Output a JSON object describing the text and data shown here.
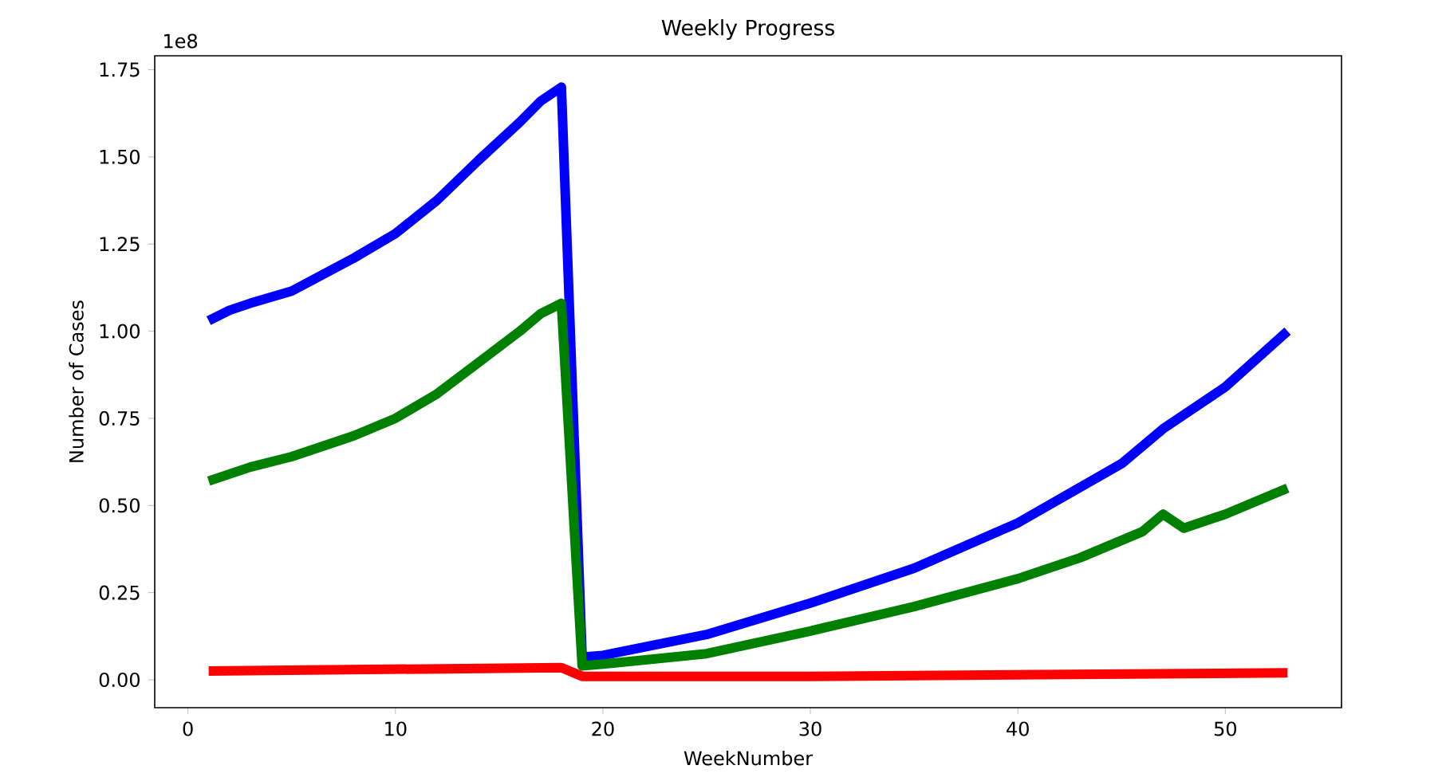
{
  "chart_data": {
    "type": "line",
    "title": "Weekly Progress",
    "xlabel": "WeekNumber",
    "ylabel": "Number of Cases",
    "annotations": [
      "1e8"
    ],
    "series": [
      {
        "color": "#0000ff",
        "x": [
          1,
          2,
          3,
          5,
          8,
          10,
          12,
          14,
          16,
          17,
          18,
          19,
          20,
          25,
          30,
          35,
          40,
          45,
          47,
          50,
          53
        ],
        "values": [
          1.03,
          1.06,
          1.08,
          1.115,
          1.21,
          1.28,
          1.375,
          1.49,
          1.6,
          1.66,
          1.7,
          0.065,
          0.07,
          0.13,
          0.22,
          0.32,
          0.45,
          0.62,
          0.72,
          0.84,
          1.0
        ]
      },
      {
        "color": "#008000",
        "x": [
          1,
          2,
          3,
          5,
          8,
          10,
          12,
          14,
          16,
          17,
          18,
          19,
          20,
          25,
          30,
          35,
          40,
          43,
          46,
          47,
          48,
          50,
          53
        ],
        "values": [
          0.57,
          0.59,
          0.61,
          0.64,
          0.7,
          0.75,
          0.82,
          0.91,
          1.0,
          1.05,
          1.08,
          0.04,
          0.045,
          0.075,
          0.14,
          0.21,
          0.29,
          0.35,
          0.425,
          0.475,
          0.435,
          0.475,
          0.55
        ]
      },
      {
        "color": "#ff0000",
        "x": [
          1,
          18,
          19,
          30,
          53
        ],
        "values": [
          0.025,
          0.035,
          0.01,
          0.01,
          0.02
        ]
      }
    ],
    "xlim": [
      -1.6,
      55.6
    ],
    "ylim": [
      -0.08,
      1.79
    ],
    "xticks": [
      0,
      10,
      20,
      30,
      40,
      50
    ],
    "yticks": [
      {
        "value": 0,
        "label": "0.00"
      },
      {
        "value": 0.25,
        "label": "0.25"
      },
      {
        "value": 0.5,
        "label": "0.50"
      },
      {
        "value": 0.75,
        "label": "0.75"
      },
      {
        "value": 1.0,
        "label": "1.00"
      },
      {
        "value": 1.25,
        "label": "1.25"
      },
      {
        "value": 1.5,
        "label": "1.50"
      },
      {
        "value": 1.75,
        "label": "1.75"
      }
    ],
    "grid": false,
    "marker": "none",
    "line_style": "solid"
  }
}
